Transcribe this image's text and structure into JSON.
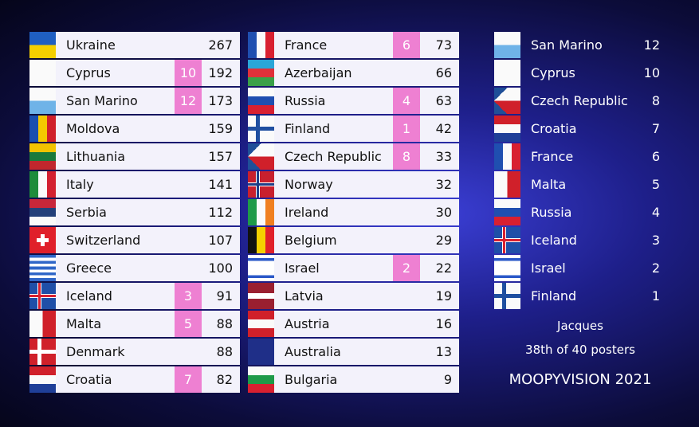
{
  "board": {
    "left": [
      {
        "country": "Ukraine",
        "points": null,
        "total": 267
      },
      {
        "country": "Cyprus",
        "points": 10,
        "total": 192
      },
      {
        "country": "San Marino",
        "points": 12,
        "total": 173
      },
      {
        "country": "Moldova",
        "points": null,
        "total": 159
      },
      {
        "country": "Lithuania",
        "points": null,
        "total": 157
      },
      {
        "country": "Italy",
        "points": null,
        "total": 141
      },
      {
        "country": "Serbia",
        "points": null,
        "total": 112
      },
      {
        "country": "Switzerland",
        "points": null,
        "total": 107
      },
      {
        "country": "Greece",
        "points": null,
        "total": 100
      },
      {
        "country": "Iceland",
        "points": 3,
        "total": 91
      },
      {
        "country": "Malta",
        "points": 5,
        "total": 88
      },
      {
        "country": "Denmark",
        "points": null,
        "total": 88
      },
      {
        "country": "Croatia",
        "points": 7,
        "total": 82
      }
    ],
    "middle": [
      {
        "country": "France",
        "points": 6,
        "total": 73
      },
      {
        "country": "Azerbaijan",
        "points": null,
        "total": 66
      },
      {
        "country": "Russia",
        "points": 4,
        "total": 63
      },
      {
        "country": "Finland",
        "points": 1,
        "total": 42
      },
      {
        "country": "Czech Republic",
        "points": 8,
        "total": 33
      },
      {
        "country": "Norway",
        "points": null,
        "total": 32
      },
      {
        "country": "Ireland",
        "points": null,
        "total": 30
      },
      {
        "country": "Belgium",
        "points": null,
        "total": 29
      },
      {
        "country": "Israel",
        "points": 2,
        "total": 22
      },
      {
        "country": "Latvia",
        "points": null,
        "total": 19
      },
      {
        "country": "Austria",
        "points": null,
        "total": 16
      },
      {
        "country": "Australia",
        "points": null,
        "total": 13
      },
      {
        "country": "Bulgaria",
        "points": null,
        "total": 9
      }
    ],
    "given": [
      {
        "country": "San Marino",
        "points": 12
      },
      {
        "country": "Cyprus",
        "points": 10
      },
      {
        "country": "Czech Republic",
        "points": 8
      },
      {
        "country": "Croatia",
        "points": 7
      },
      {
        "country": "France",
        "points": 6
      },
      {
        "country": "Malta",
        "points": 5
      },
      {
        "country": "Russia",
        "points": 4
      },
      {
        "country": "Iceland",
        "points": 3
      },
      {
        "country": "Israel",
        "points": 2
      },
      {
        "country": "Finland",
        "points": 1
      }
    ],
    "voter": "Jacques",
    "rank": "38th of 40 posters",
    "show": "MOOPYVISION 2021"
  }
}
